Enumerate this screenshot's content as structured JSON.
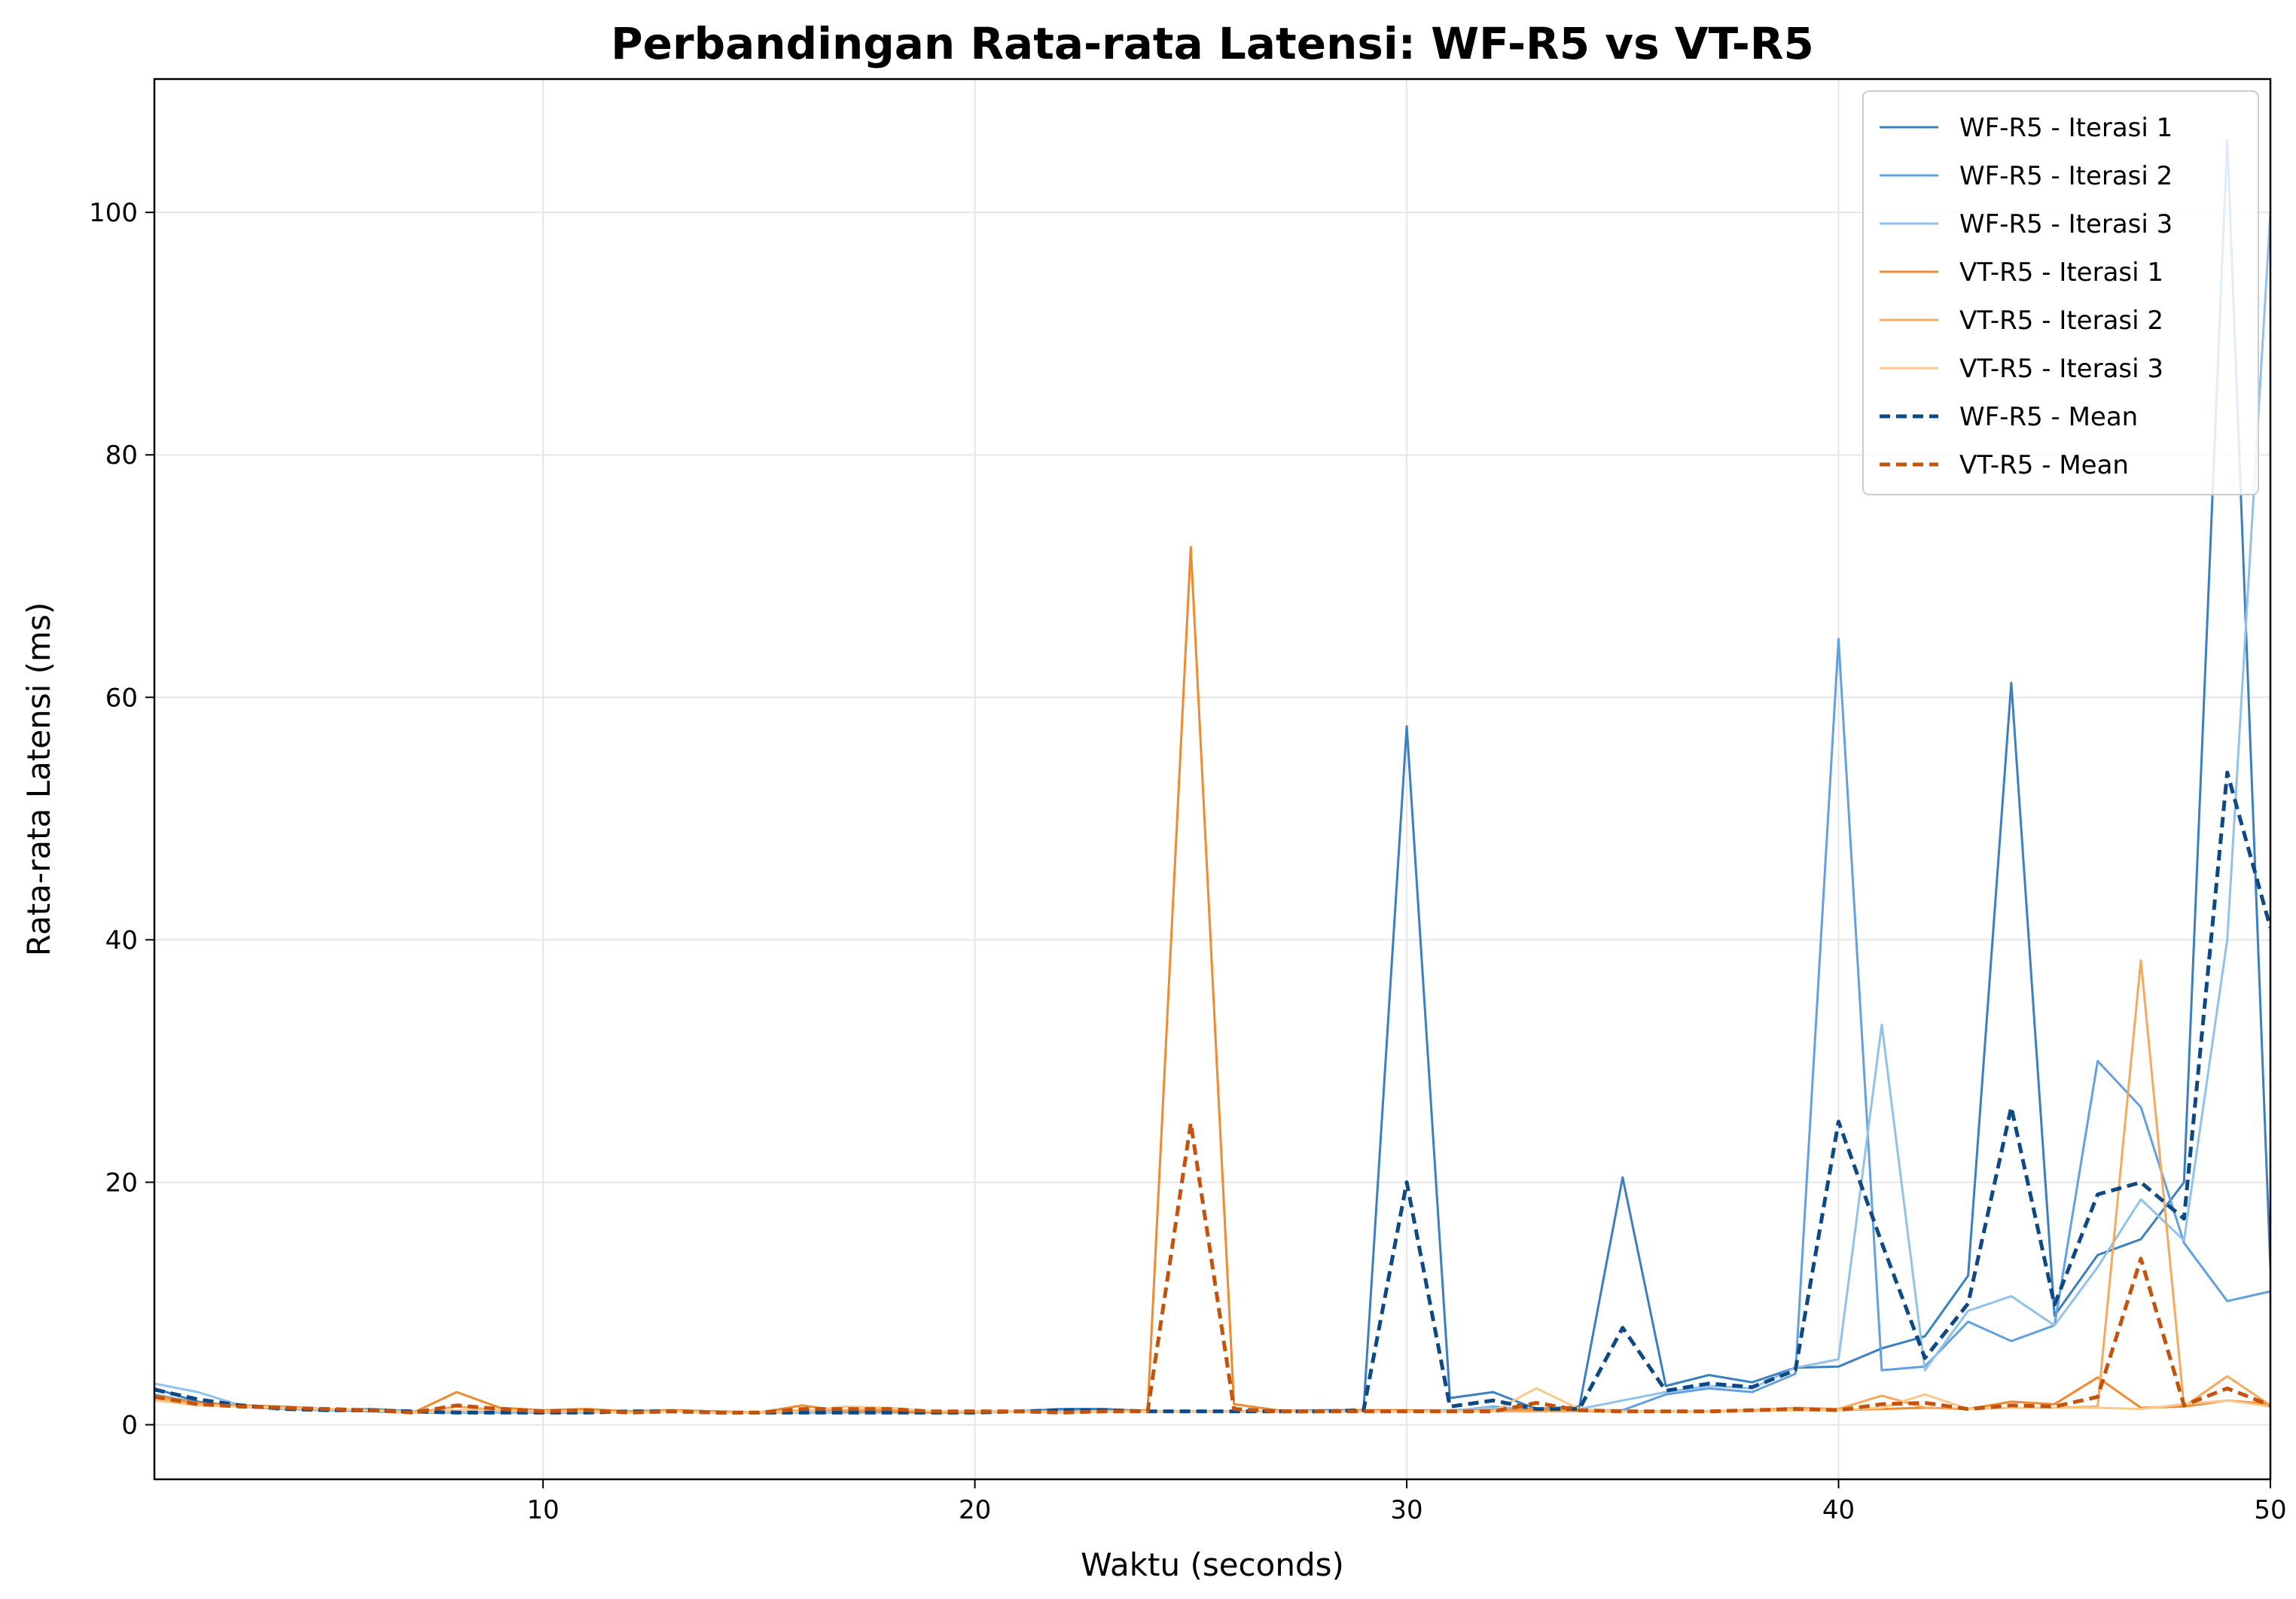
{
  "chart_data": {
    "type": "line",
    "title": "Perbandingan Rata-rata Latensi: WF-R5 vs VT-R5",
    "xlabel": "Waktu (seconds)",
    "ylabel": "Rata-rata Latensi (ms)",
    "xlim": [
      1,
      50
    ],
    "ylim": [
      -4.5,
      111
    ],
    "xticks": [
      10,
      20,
      30,
      40,
      50
    ],
    "yticks": [
      0,
      20,
      40,
      60,
      80,
      100
    ],
    "grid": true,
    "legend_position": "top-right",
    "x": [
      1,
      2,
      3,
      4,
      5,
      6,
      7,
      8,
      9,
      10,
      11,
      12,
      13,
      14,
      15,
      16,
      17,
      18,
      19,
      20,
      21,
      22,
      23,
      24,
      25,
      26,
      27,
      28,
      29,
      30,
      31,
      32,
      33,
      34,
      35,
      36,
      37,
      38,
      39,
      40,
      41,
      42,
      43,
      44,
      45,
      46,
      47,
      48,
      49,
      50
    ],
    "series": [
      {
        "name": "WF-R5 - Iterasi 1",
        "color": "#3a7fbf",
        "style": "solid",
        "values": [
          3.0,
          1.9,
          1.5,
          1.3,
          1.2,
          1.3,
          1.1,
          1.0,
          1.0,
          1.0,
          1.0,
          1.1,
          1.2,
          1.1,
          1.0,
          1.0,
          1.0,
          1.0,
          1.0,
          1.1,
          1.1,
          1.3,
          1.3,
          1.1,
          1.1,
          1.1,
          1.1,
          1.2,
          1.2,
          57.6,
          2.2,
          2.7,
          1.3,
          1.5,
          20.4,
          3.2,
          4.1,
          3.5,
          4.7,
          4.8,
          6.3,
          7.3,
          12.3,
          61.2,
          9.0,
          14.0,
          15.3,
          20.0,
          106.0,
          13.0
        ]
      },
      {
        "name": "WF-R5 - Iterasi 2",
        "color": "#62a0e0",
        "style": "solid",
        "values": [
          2.5,
          1.8,
          1.6,
          1.4,
          1.2,
          1.1,
          1.0,
          1.0,
          1.0,
          1.0,
          1.0,
          1.1,
          1.1,
          1.0,
          1.0,
          1.0,
          1.0,
          1.0,
          1.0,
          1.0,
          1.1,
          1.1,
          1.1,
          1.1,
          1.1,
          1.1,
          1.1,
          1.1,
          1.1,
          1.1,
          1.1,
          1.5,
          1.2,
          1.2,
          1.2,
          2.5,
          3.0,
          2.7,
          4.2,
          64.8,
          4.5,
          4.8,
          8.5,
          6.9,
          8.2,
          30.0,
          26.2,
          15.0,
          10.2,
          11.0
        ]
      },
      {
        "name": "WF-R5 - Iterasi 3",
        "color": "#92c2ea",
        "style": "solid",
        "values": [
          3.4,
          2.7,
          1.6,
          1.3,
          1.2,
          1.2,
          1.1,
          1.0,
          1.0,
          1.0,
          1.0,
          1.1,
          1.1,
          1.0,
          1.0,
          1.0,
          1.0,
          1.0,
          1.0,
          1.0,
          1.1,
          1.1,
          1.1,
          1.1,
          1.1,
          1.1,
          1.1,
          1.1,
          1.2,
          1.2,
          1.2,
          1.4,
          1.3,
          1.3,
          2.0,
          2.7,
          3.2,
          3.0,
          4.7,
          5.4,
          33.0,
          4.5,
          9.4,
          10.6,
          8.2,
          13.0,
          18.6,
          15.2,
          40.0,
          100.0
        ]
      },
      {
        "name": "VT-R5 - Iterasi 1",
        "color": "#ef8a2f",
        "style": "solid",
        "values": [
          2.4,
          1.8,
          1.6,
          1.5,
          1.3,
          1.2,
          1.0,
          2.7,
          1.4,
          1.2,
          1.3,
          1.1,
          1.2,
          1.1,
          1.0,
          1.6,
          1.1,
          1.1,
          1.0,
          1.1,
          1.1,
          1.0,
          1.1,
          1.2,
          72.4,
          1.7,
          1.2,
          1.1,
          1.2,
          1.2,
          1.1,
          1.2,
          1.3,
          1.2,
          1.1,
          1.1,
          1.1,
          1.2,
          1.3,
          1.2,
          1.3,
          1.4,
          1.3,
          1.9,
          1.7,
          3.9,
          1.4,
          1.5,
          2.0,
          1.7
        ]
      },
      {
        "name": "VT-R5 - Iterasi 2",
        "color": "#f5a95c",
        "style": "solid",
        "values": [
          2.2,
          1.7,
          1.5,
          1.4,
          1.3,
          1.2,
          1.0,
          1.5,
          1.2,
          1.1,
          1.1,
          1.0,
          1.1,
          1.0,
          1.0,
          1.2,
          1.2,
          1.3,
          1.1,
          1.1,
          1.1,
          1.0,
          1.1,
          1.1,
          1.1,
          1.1,
          1.1,
          1.1,
          1.1,
          1.1,
          1.1,
          1.1,
          1.1,
          1.1,
          1.1,
          1.1,
          1.1,
          1.2,
          1.4,
          1.3,
          2.4,
          1.4,
          1.3,
          1.4,
          1.4,
          1.5,
          38.3,
          1.5,
          4.0,
          1.6
        ]
      },
      {
        "name": "VT-R5 - Iterasi 3",
        "color": "#fcc98c",
        "style": "solid",
        "values": [
          2.0,
          1.6,
          1.5,
          1.4,
          1.3,
          1.2,
          1.0,
          1.2,
          1.2,
          1.1,
          1.1,
          1.0,
          1.1,
          1.0,
          1.0,
          1.1,
          1.5,
          1.4,
          1.1,
          1.1,
          1.1,
          1.0,
          1.1,
          1.1,
          1.1,
          1.1,
          1.1,
          1.1,
          1.1,
          1.1,
          1.1,
          1.1,
          3.0,
          1.3,
          1.1,
          1.1,
          1.1,
          1.1,
          1.2,
          1.2,
          1.4,
          2.5,
          1.3,
          1.4,
          1.4,
          1.4,
          1.3,
          1.7,
          2.0,
          1.5
        ]
      },
      {
        "name": "WF-R5 - Mean",
        "color": "#0d4a85",
        "style": "dashed",
        "values": [
          2.9,
          2.1,
          1.6,
          1.3,
          1.2,
          1.2,
          1.1,
          1.0,
          1.0,
          1.0,
          1.0,
          1.1,
          1.1,
          1.0,
          1.0,
          1.0,
          1.0,
          1.0,
          1.0,
          1.0,
          1.1,
          1.2,
          1.2,
          1.1,
          1.1,
          1.1,
          1.1,
          1.1,
          1.2,
          20.0,
          1.5,
          2.0,
          1.3,
          1.3,
          8.0,
          2.8,
          3.4,
          3.1,
          4.5,
          25.0,
          15.0,
          5.5,
          10.0,
          26.2,
          9.9,
          19.0,
          20.0,
          17.0,
          53.8,
          41.0
        ]
      },
      {
        "name": "VT-R5 - Mean",
        "color": "#c4530e",
        "style": "dashed",
        "values": [
          2.3,
          1.7,
          1.5,
          1.4,
          1.3,
          1.2,
          1.0,
          1.6,
          1.3,
          1.1,
          1.2,
          1.0,
          1.1,
          1.0,
          1.0,
          1.3,
          1.3,
          1.3,
          1.1,
          1.1,
          1.1,
          1.0,
          1.1,
          1.1,
          24.9,
          1.3,
          1.1,
          1.1,
          1.1,
          1.1,
          1.1,
          1.1,
          1.8,
          1.2,
          1.1,
          1.1,
          1.1,
          1.2,
          1.3,
          1.2,
          1.7,
          1.8,
          1.3,
          1.6,
          1.5,
          2.3,
          13.7,
          1.6,
          3.0,
          1.6
        ]
      }
    ]
  }
}
